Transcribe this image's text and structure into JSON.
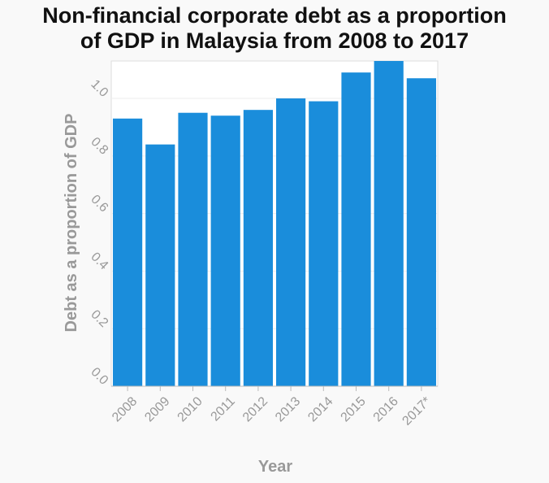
{
  "chart_data": {
    "type": "bar",
    "title": "Non-financial corporate debt as a proportion of GDP in Malaysia from 2008 to 2017",
    "title_lines": [
      "Non-financial corporate debt as a proportion",
      "of GDP in Malaysia from 2008 to 2017"
    ],
    "xlabel": "Year",
    "ylabel": "Debt as a proportion of GDP",
    "categories": [
      "2008",
      "2009",
      "2010",
      "2011",
      "2012",
      "2013",
      "2014",
      "2015",
      "2016",
      "2017*"
    ],
    "values": [
      0.93,
      0.84,
      0.95,
      0.94,
      0.96,
      1.0,
      0.99,
      1.09,
      1.13,
      1.07
    ],
    "yticks": [
      "0.0",
      "0.2",
      "0.4",
      "0.6",
      "0.8",
      "1.0"
    ],
    "ylim": [
      0,
      1.13
    ],
    "grid": true,
    "bar_color": "#1a8ddb",
    "text_color": "#999999",
    "title_color": "#111111"
  }
}
